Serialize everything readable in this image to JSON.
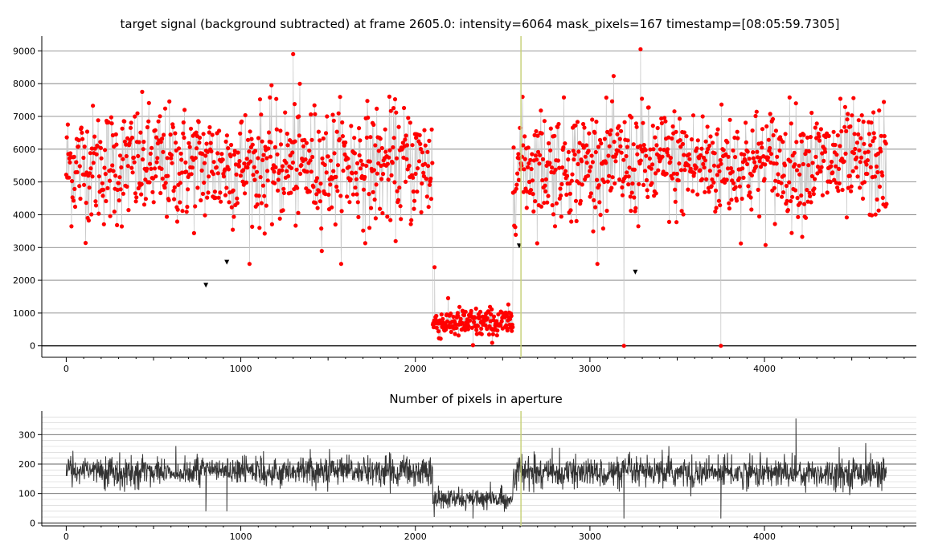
{
  "chart_data": [
    {
      "type": "scatter",
      "title": "target signal (background subtracted) at frame 2605.0: intensity=6064 mask_pixels=167 timestamp=[08:05:59.7305]",
      "xlim": [
        -140,
        4870
      ],
      "ylim": [
        -350,
        9450
      ],
      "x_ticks": [
        0,
        1000,
        2000,
        3000,
        4000
      ],
      "y_ticks": [
        0,
        1000,
        2000,
        3000,
        4000,
        5000,
        6000,
        7000,
        8000,
        9000
      ],
      "grid": "horizontal",
      "marker_color": "#ff0000",
      "line_color": "#c8c8c8",
      "cursor_frame": 2605,
      "cursor_color": "#c8d27a",
      "series": [
        {
          "segments": [
            {
              "x_start": 0,
              "x_end": 2100,
              "mean": 5500,
              "spread": 900
            },
            {
              "x_start": 2100,
              "x_end": 2560,
              "mean": 700,
              "spread": 230
            },
            {
              "x_start": 2560,
              "x_end": 4700,
              "mean": 5550,
              "spread": 850
            }
          ],
          "marker_points": [
            {
              "x": 800,
              "y": 1850
            },
            {
              "x": 920,
              "y": 2550
            },
            {
              "x": 2595,
              "y": 3050
            },
            {
              "x": 3260,
              "y": 2250
            }
          ],
          "notable_points": [
            {
              "x": 1300,
              "y": 8900
            },
            {
              "x": 3290,
              "y": 9050
            },
            {
              "x": 2110,
              "y": 2400
            },
            {
              "x": 3195,
              "y": 0
            },
            {
              "x": 3750,
              "y": 0
            },
            {
              "x": 2330,
              "y": 20
            }
          ]
        }
      ]
    },
    {
      "type": "line",
      "title": "Number of pixels in aperture",
      "xlim": [
        -140,
        4870
      ],
      "ylim": [
        -10,
        380
      ],
      "x_ticks": [
        0,
        1000,
        2000,
        3000,
        4000
      ],
      "y_ticks": [
        0,
        100,
        200,
        300
      ],
      "minor_y_step": 20,
      "grid": "horizontal",
      "line_color": "#333333",
      "cursor_frame": 2605,
      "cursor_color": "#c8d27a",
      "series": [
        {
          "segments": [
            {
              "x_start": 0,
              "x_end": 2100,
              "mean": 175,
              "spread": 25
            },
            {
              "x_start": 2100,
              "x_end": 2560,
              "mean": 80,
              "spread": 18
            },
            {
              "x_start": 2560,
              "x_end": 4700,
              "mean": 170,
              "spread": 25
            }
          ],
          "notable_points": [
            {
              "x": 800,
              "y": 40
            },
            {
              "x": 920,
              "y": 40
            },
            {
              "x": 3195,
              "y": 15
            },
            {
              "x": 3750,
              "y": 15
            },
            {
              "x": 4180,
              "y": 355
            },
            {
              "x": 2330,
              "y": 15
            }
          ]
        }
      ]
    }
  ]
}
